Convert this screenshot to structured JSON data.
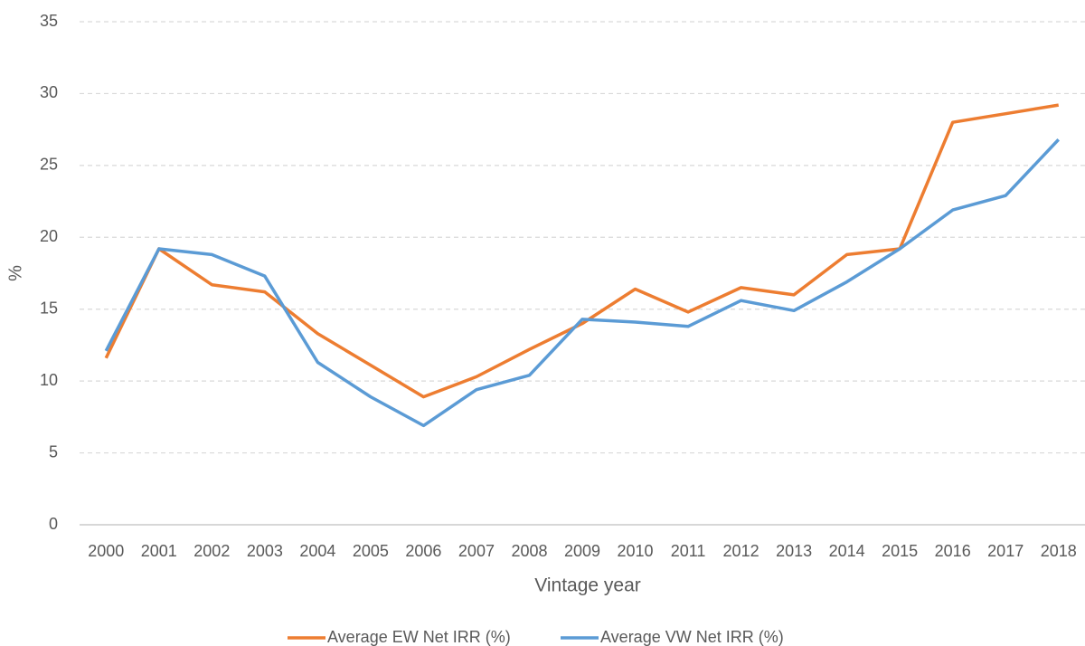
{
  "chart_data": {
    "type": "line",
    "x_label": "Vintage year",
    "y_label": "%",
    "categories": [
      "2000",
      "2001",
      "2002",
      "2003",
      "2004",
      "2005",
      "2006",
      "2007",
      "2008",
      "2009",
      "2010",
      "2011",
      "2012",
      "2013",
      "2014",
      "2015",
      "2016",
      "2017",
      "2018"
    ],
    "series": [
      {
        "name": "Average EW Net IRR (%)",
        "color": "#ed7d31",
        "values": [
          11.6,
          19.2,
          16.7,
          16.2,
          13.3,
          11.1,
          8.9,
          10.3,
          12.2,
          14.0,
          16.4,
          14.8,
          16.5,
          16.0,
          18.8,
          19.2,
          28.0,
          28.6,
          29.2
        ]
      },
      {
        "name": "Average VW Net IRR (%)",
        "color": "#5b9bd5",
        "values": [
          12.1,
          19.2,
          18.8,
          17.3,
          11.3,
          8.9,
          6.9,
          9.4,
          10.4,
          14.3,
          14.1,
          13.8,
          15.6,
          14.9,
          16.9,
          19.2,
          21.9,
          22.9,
          26.8
        ]
      }
    ],
    "ylim": [
      0,
      35
    ],
    "yticks": [
      0,
      5,
      10,
      15,
      20,
      25,
      30,
      35
    ],
    "grid": true,
    "legend": "bottom"
  }
}
